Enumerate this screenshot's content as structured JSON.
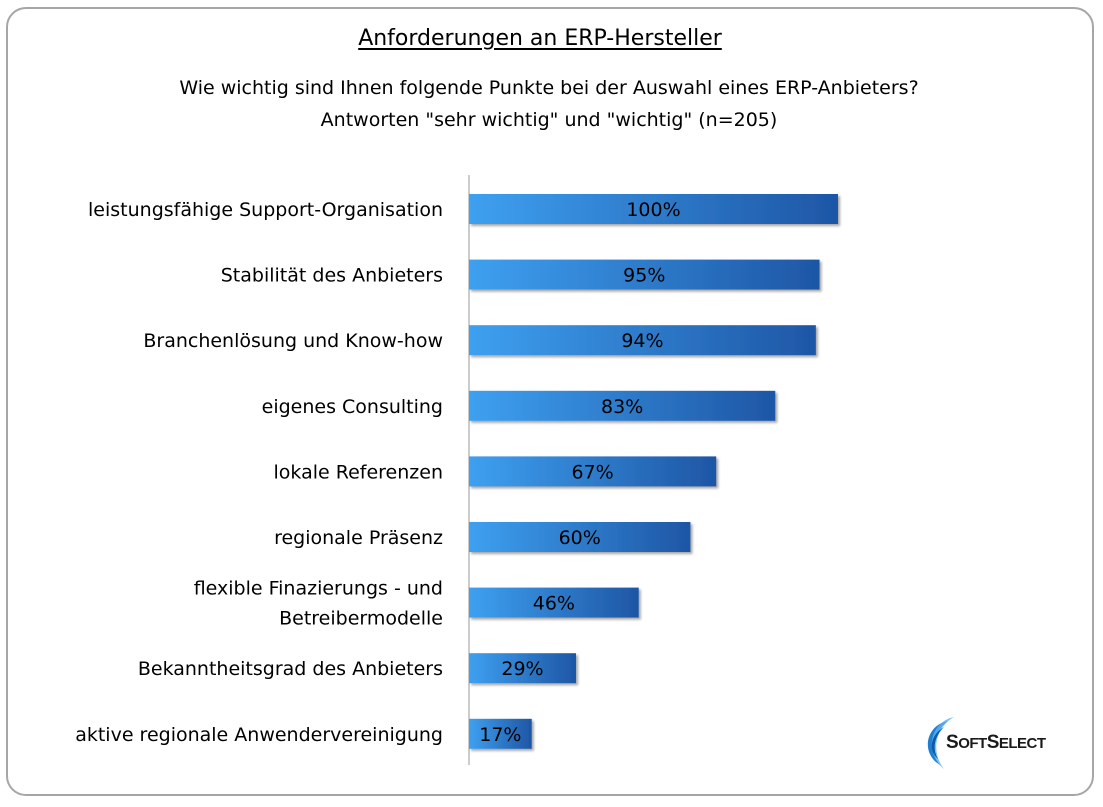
{
  "chart_data": {
    "type": "bar",
    "orientation": "horizontal",
    "title": "Anforderungen an ERP-Hersteller",
    "subtitle": [
      "Wie wichtig sind Ihnen folgende Punkte bei der Auswahl eines ERP-Anbieters?",
      "Antworten \"sehr wichtig\" und \"wichtig\" (n=205)"
    ],
    "categories": [
      [
        "leistungsfähige Support-Organisation"
      ],
      [
        "Stabilität des Anbieters"
      ],
      [
        "Branchenlösung und Know-how"
      ],
      [
        "eigenes Consulting"
      ],
      [
        "lokale Referenzen"
      ],
      [
        "regionale Präsenz"
      ],
      [
        "flexible Finazierungs - und",
        "Betreibermodelle"
      ],
      [
        "Bekanntheitsgrad des Anbieters"
      ],
      [
        "aktive regionale Anwendervereinigung"
      ]
    ],
    "values": [
      100,
      95,
      94,
      83,
      67,
      60,
      46,
      29,
      17
    ],
    "data_labels": [
      "100%",
      "95%",
      "94%",
      "83%",
      "67%",
      "60%",
      "46%",
      "29%",
      "17%"
    ],
    "xlim": [
      0,
      100
    ],
    "grid": false,
    "legend": "none",
    "bar_color_start": "#3ea0f0",
    "bar_color_end": "#1e56a5"
  },
  "logo": {
    "name": "SoftSelect",
    "text_big1": "S",
    "text_small1": "OFT",
    "text_big2": "S",
    "text_small2": "ELECT"
  }
}
